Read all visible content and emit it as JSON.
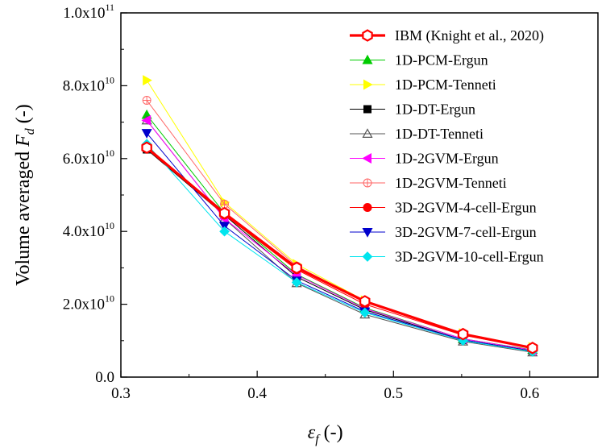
{
  "chart_data": {
    "type": "line",
    "title": "",
    "xlabel": {
      "symbol": "ε",
      "subscript": "f",
      "unit": "(-)"
    },
    "ylabel": {
      "prefix": "Volume averaged",
      "symbol": "F",
      "subscript": "d",
      "unit": "(-)"
    },
    "xlim": [
      0.3,
      0.65
    ],
    "ylim": [
      0,
      100000000000.0
    ],
    "x_ticks": [
      {
        "value": 0.3,
        "label": "0.3"
      },
      {
        "value": 0.4,
        "label": "0.4"
      },
      {
        "value": 0.5,
        "label": "0.5"
      },
      {
        "value": 0.6,
        "label": "0.6"
      }
    ],
    "y_ticks": [
      {
        "value": 0,
        "label": "0.0",
        "mantissa": "",
        "exponent": ""
      },
      {
        "value": 20000000000.0,
        "label": "",
        "mantissa": "2.0x10",
        "exponent": "10"
      },
      {
        "value": 40000000000.0,
        "label": "",
        "mantissa": "4.0x10",
        "exponent": "10"
      },
      {
        "value": 60000000000.0,
        "label": "",
        "mantissa": "6.0x10",
        "exponent": "10"
      },
      {
        "value": 80000000000.0,
        "label": "",
        "mantissa": "8.0x10",
        "exponent": "10"
      },
      {
        "value": 100000000000.0,
        "label": "",
        "mantissa": "1.0x10",
        "exponent": "11"
      }
    ],
    "grid": false,
    "legend_position": "top-right",
    "x": [
      0.319,
      0.376,
      0.429,
      0.479,
      0.551,
      0.602
    ],
    "series": [
      {
        "name": "1D-PCM-Ergun",
        "color": "#00cc00",
        "marker": "triangle-up",
        "filled": true,
        "values": [
          72000000000.0,
          45000000000.0,
          28200000000.0,
          19000000000.0,
          10500000000.0,
          7500000000.0
        ]
      },
      {
        "name": "1D-PCM-Tenneti",
        "color": "#ffff00",
        "marker": "triangle-right",
        "filled": true,
        "values": [
          81500000000.0,
          48000000000.0,
          31000000000.0,
          21000000000.0,
          12000000000.0,
          8200000000.0
        ]
      },
      {
        "name": "1D-DT-Ergun",
        "color": "#000000",
        "marker": "square",
        "filled": true,
        "values": [
          62500000000.0,
          44500000000.0,
          27500000000.0,
          18500000000.0,
          10200000000.0,
          7200000000.0
        ]
      },
      {
        "name": "1D-DT-Tenneti",
        "color": "#555555",
        "marker": "triangle-up",
        "filled": false,
        "values": [
          70500000000.0,
          43500000000.0,
          25800000000.0,
          17200000000.0,
          9800000000.0,
          6800000000.0
        ]
      },
      {
        "name": "1D-2GVM-Ergun",
        "color": "#ff00ff",
        "marker": "triangle-left",
        "filled": true,
        "values": [
          70500000000.0,
          43500000000.0,
          28000000000.0,
          18800000000.0,
          10500000000.0,
          7400000000.0
        ]
      },
      {
        "name": "1D-2GVM-Tenneti",
        "color": "#ff6666",
        "marker": "circle-plus",
        "filled": false,
        "values": [
          76000000000.0,
          47500000000.0,
          30500000000.0,
          20800000000.0,
          11800000000.0,
          8100000000.0
        ]
      },
      {
        "name": "3D-2GVM-4-cell-Ergun",
        "color": "#ff0000",
        "marker": "circle",
        "filled": true,
        "values": [
          63000000000.0,
          44500000000.0,
          29500000000.0,
          20000000000.0,
          11500000000.0,
          8000000000.0
        ]
      },
      {
        "name": "3D-2GVM-7-cell-Ergun",
        "color": "#0000cc",
        "marker": "triangle-down",
        "filled": true,
        "values": [
          67000000000.0,
          41500000000.0,
          26500000000.0,
          18000000000.0,
          10200000000.0,
          7100000000.0
        ]
      },
      {
        "name": "3D-2GVM-10-cell-Ergun",
        "color": "#00e5ee",
        "marker": "diamond",
        "filled": true,
        "values": [
          64000000000.0,
          40000000000.0,
          26000000000.0,
          17700000000.0,
          10000000000.0,
          7000000000.0
        ]
      },
      {
        "name": "IBM (Knight et al., 2020)",
        "color": "#ff0000",
        "marker": "hexagon",
        "filled": false,
        "thick": true,
        "values": [
          63000000000.0,
          45000000000.0,
          30000000000.0,
          20800000000.0,
          11800000000.0,
          8000000000.0
        ]
      }
    ],
    "legend_order": [
      "IBM (Knight et al., 2020)",
      "1D-PCM-Ergun",
      "1D-PCM-Tenneti",
      "1D-DT-Ergun",
      "1D-DT-Tenneti",
      "1D-2GVM-Ergun",
      "1D-2GVM-Tenneti",
      "3D-2GVM-4-cell-Ergun",
      "3D-2GVM-7-cell-Ergun",
      "3D-2GVM-10-cell-Ergun"
    ]
  }
}
